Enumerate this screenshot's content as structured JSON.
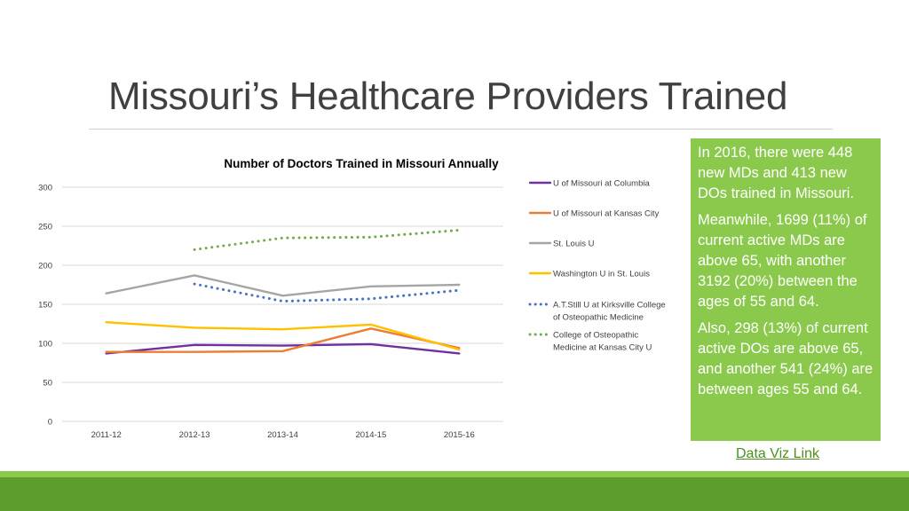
{
  "slide": {
    "title": "Missouri’s Healthcare Providers Trained"
  },
  "side_panel": {
    "paragraphs": [
      "In 2016, there were 448 new MDs and 413 new DOs trained in Missouri.",
      "Meanwhile, 1699 (11%) of current active MDs are above 65, with another 3192 (20%) between the ages of 55 and 64.",
      "Also, 298 (13%) of current active DOs are above 65, and another 541 (24%) are between ages 55 and 64."
    ],
    "link_label": "Data Viz Link",
    "background_color": "#8bc94d"
  },
  "footer": {
    "light_color": "#8bc94d",
    "dark_color": "#5c9e2e"
  },
  "chart_data": {
    "type": "line",
    "title": "Number of Doctors Trained in Missouri Annually",
    "xlabel": "",
    "ylabel": "",
    "categories": [
      "2011-12",
      "2012-13",
      "2013-14",
      "2014-15",
      "2015-16"
    ],
    "ylim": [
      0,
      300
    ],
    "yticks": [
      0,
      50,
      100,
      150,
      200,
      250,
      300
    ],
    "grid": true,
    "legend_position": "right",
    "series": [
      {
        "name": "U of Missouri at Columbia",
        "values": [
          87,
          98,
          97,
          99,
          87
        ],
        "color": "#7030a0",
        "style": "solid"
      },
      {
        "name": "U of Missouri at Kansas City",
        "values": [
          89,
          89,
          90,
          119,
          94
        ],
        "color": "#ed7d31",
        "style": "solid"
      },
      {
        "name": "St. Louis U",
        "values": [
          164,
          187,
          161,
          173,
          175
        ],
        "color": "#a5a5a5",
        "style": "solid"
      },
      {
        "name": "Washington U in St. Louis",
        "values": [
          127,
          120,
          118,
          124,
          92
        ],
        "color": "#ffc000",
        "style": "solid"
      },
      {
        "name": "A.T.Still U at Kirksville College of Osteopathic Medicine",
        "legend_lines": [
          "A.T.Still U at Kirksville College",
          "of Osteopathic Medicine"
        ],
        "values": [
          null,
          176,
          154,
          157,
          168
        ],
        "color": "#4472c4",
        "style": "dotted"
      },
      {
        "name": "College of Osteopathic Medicine at Kansas City U",
        "legend_lines": [
          "College of Osteopathic",
          "Medicine at Kansas City U"
        ],
        "values": [
          null,
          220,
          235,
          236,
          245
        ],
        "color": "#70ad47",
        "style": "dotted"
      }
    ]
  }
}
